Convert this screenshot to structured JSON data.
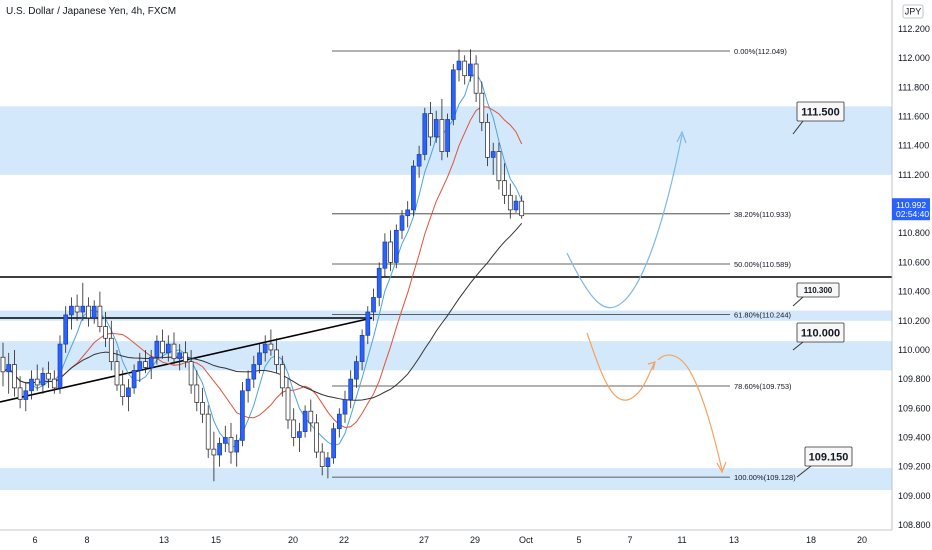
{
  "chart_data": {
    "type": "candlestick",
    "title": "U.S. Dollar / Japanese Yen, 4h, FXCM",
    "currency": "JPY",
    "ylim": [
      108.7,
      112.2
    ],
    "y_ticks": [
      "112.200",
      "112.000",
      "111.800",
      "111.600",
      "111.400",
      "111.200",
      "111.000",
      "110.800",
      "110.600",
      "110.400",
      "110.200",
      "110.000",
      "109.800",
      "109.600",
      "109.400",
      "109.200",
      "109.000",
      "108.800"
    ],
    "x_ticks": [
      "6",
      "8",
      "13",
      "15",
      "20",
      "22",
      "27",
      "29",
      "Oct",
      "5",
      "7",
      "11",
      "13",
      "18",
      "20"
    ],
    "last_price": "110.992",
    "countdown": "02:54:40",
    "zones": [
      {
        "from": 111.2,
        "to": 111.67
      },
      {
        "from": 110.2,
        "to": 110.27
      },
      {
        "from": 109.86,
        "to": 110.06
      },
      {
        "from": 109.04,
        "to": 109.19
      }
    ],
    "fib_levels": [
      {
        "label": "0.00%(112.049)",
        "price": 112.049
      },
      {
        "label": "38.20%(110.933)",
        "price": 110.933
      },
      {
        "label": "50.00%(110.589)",
        "price": 110.589
      },
      {
        "label": "61.80%(110.244)",
        "price": 110.244
      },
      {
        "label": "78.60%(109.753)",
        "price": 109.753
      },
      {
        "label": "100.00%(109.128)",
        "price": 109.128
      }
    ],
    "callouts": [
      {
        "label": "111.500",
        "price": 111.5
      },
      {
        "label": "110.300",
        "price": 110.3
      },
      {
        "label": "110.000",
        "price": 110.0
      },
      {
        "label": "109.150",
        "price": 109.15
      }
    ],
    "horizontal_line": 110.5,
    "candles": [
      {
        "o": 109.95,
        "h": 110.05,
        "l": 109.75,
        "c": 109.85
      },
      {
        "o": 109.85,
        "h": 109.98,
        "l": 109.7,
        "c": 109.9
      },
      {
        "o": 109.9,
        "h": 110.0,
        "l": 109.68,
        "c": 109.74
      },
      {
        "o": 109.74,
        "h": 109.82,
        "l": 109.6,
        "c": 109.66
      },
      {
        "o": 109.66,
        "h": 109.78,
        "l": 109.58,
        "c": 109.72
      },
      {
        "o": 109.72,
        "h": 109.86,
        "l": 109.66,
        "c": 109.8
      },
      {
        "o": 109.8,
        "h": 109.9,
        "l": 109.72,
        "c": 109.76
      },
      {
        "o": 109.76,
        "h": 109.88,
        "l": 109.7,
        "c": 109.84
      },
      {
        "o": 109.84,
        "h": 109.92,
        "l": 109.74,
        "c": 109.8
      },
      {
        "o": 109.8,
        "h": 109.86,
        "l": 109.7,
        "c": 109.74
      },
      {
        "o": 109.74,
        "h": 110.1,
        "l": 109.7,
        "c": 110.04
      },
      {
        "o": 110.04,
        "h": 110.3,
        "l": 109.98,
        "c": 110.24
      },
      {
        "o": 110.24,
        "h": 110.36,
        "l": 110.14,
        "c": 110.3
      },
      {
        "o": 110.3,
        "h": 110.38,
        "l": 110.2,
        "c": 110.26
      },
      {
        "o": 110.26,
        "h": 110.46,
        "l": 110.2,
        "c": 110.3
      },
      {
        "o": 110.3,
        "h": 110.36,
        "l": 110.16,
        "c": 110.22
      },
      {
        "o": 110.22,
        "h": 110.34,
        "l": 110.18,
        "c": 110.3
      },
      {
        "o": 110.3,
        "h": 110.4,
        "l": 110.12,
        "c": 110.16
      },
      {
        "o": 110.16,
        "h": 110.26,
        "l": 110.02,
        "c": 110.08
      },
      {
        "o": 110.08,
        "h": 110.2,
        "l": 109.86,
        "c": 109.92
      },
      {
        "o": 109.92,
        "h": 110.0,
        "l": 109.72,
        "c": 109.76
      },
      {
        "o": 109.76,
        "h": 109.86,
        "l": 109.62,
        "c": 109.68
      },
      {
        "o": 109.68,
        "h": 109.8,
        "l": 109.58,
        "c": 109.74
      },
      {
        "o": 109.74,
        "h": 109.9,
        "l": 109.7,
        "c": 109.86
      },
      {
        "o": 109.86,
        "h": 109.98,
        "l": 109.78,
        "c": 109.92
      },
      {
        "o": 109.92,
        "h": 110.0,
        "l": 109.84,
        "c": 109.88
      },
      {
        "o": 109.88,
        "h": 110.0,
        "l": 109.8,
        "c": 109.95
      },
      {
        "o": 109.95,
        "h": 110.1,
        "l": 109.9,
        "c": 110.06
      },
      {
        "o": 110.06,
        "h": 110.14,
        "l": 109.94,
        "c": 109.98
      },
      {
        "o": 109.98,
        "h": 110.1,
        "l": 109.92,
        "c": 110.04
      },
      {
        "o": 110.04,
        "h": 110.12,
        "l": 109.9,
        "c": 109.94
      },
      {
        "o": 109.94,
        "h": 110.04,
        "l": 109.86,
        "c": 109.98
      },
      {
        "o": 109.98,
        "h": 110.06,
        "l": 109.88,
        "c": 109.92
      },
      {
        "o": 109.92,
        "h": 110.0,
        "l": 109.7,
        "c": 109.76
      },
      {
        "o": 109.76,
        "h": 109.86,
        "l": 109.58,
        "c": 109.64
      },
      {
        "o": 109.64,
        "h": 109.74,
        "l": 109.5,
        "c": 109.56
      },
      {
        "o": 109.56,
        "h": 109.62,
        "l": 109.26,
        "c": 109.32
      },
      {
        "o": 109.32,
        "h": 109.44,
        "l": 109.1,
        "c": 109.28
      },
      {
        "o": 109.28,
        "h": 109.4,
        "l": 109.2,
        "c": 109.36
      },
      {
        "o": 109.36,
        "h": 109.48,
        "l": 109.3,
        "c": 109.4
      },
      {
        "o": 109.4,
        "h": 109.5,
        "l": 109.22,
        "c": 109.3
      },
      {
        "o": 109.3,
        "h": 109.42,
        "l": 109.2,
        "c": 109.38
      },
      {
        "o": 109.38,
        "h": 109.78,
        "l": 109.34,
        "c": 109.72
      },
      {
        "o": 109.72,
        "h": 109.86,
        "l": 109.64,
        "c": 109.8
      },
      {
        "o": 109.8,
        "h": 109.96,
        "l": 109.74,
        "c": 109.9
      },
      {
        "o": 109.9,
        "h": 110.04,
        "l": 109.84,
        "c": 109.98
      },
      {
        "o": 109.98,
        "h": 110.1,
        "l": 109.92,
        "c": 110.04
      },
      {
        "o": 110.04,
        "h": 110.14,
        "l": 109.96,
        "c": 110.0
      },
      {
        "o": 110.0,
        "h": 110.08,
        "l": 109.84,
        "c": 109.9
      },
      {
        "o": 109.9,
        "h": 109.96,
        "l": 109.68,
        "c": 109.74
      },
      {
        "o": 109.74,
        "h": 109.8,
        "l": 109.46,
        "c": 109.52
      },
      {
        "o": 109.52,
        "h": 109.6,
        "l": 109.34,
        "c": 109.4
      },
      {
        "o": 109.4,
        "h": 109.5,
        "l": 109.3,
        "c": 109.44
      },
      {
        "o": 109.44,
        "h": 109.62,
        "l": 109.4,
        "c": 109.58
      },
      {
        "o": 109.58,
        "h": 109.66,
        "l": 109.44,
        "c": 109.5
      },
      {
        "o": 109.5,
        "h": 109.56,
        "l": 109.26,
        "c": 109.3
      },
      {
        "o": 109.3,
        "h": 109.36,
        "l": 109.14,
        "c": 109.2
      },
      {
        "o": 109.2,
        "h": 109.3,
        "l": 109.12,
        "c": 109.26
      },
      {
        "o": 109.26,
        "h": 109.5,
        "l": 109.22,
        "c": 109.46
      },
      {
        "o": 109.46,
        "h": 109.6,
        "l": 109.4,
        "c": 109.56
      },
      {
        "o": 109.56,
        "h": 109.72,
        "l": 109.5,
        "c": 109.66
      },
      {
        "o": 109.66,
        "h": 109.86,
        "l": 109.6,
        "c": 109.8
      },
      {
        "o": 109.8,
        "h": 109.96,
        "l": 109.74,
        "c": 109.92
      },
      {
        "o": 109.92,
        "h": 110.14,
        "l": 109.86,
        "c": 110.1
      },
      {
        "o": 110.1,
        "h": 110.3,
        "l": 110.04,
        "c": 110.26
      },
      {
        "o": 110.26,
        "h": 110.42,
        "l": 110.2,
        "c": 110.36
      },
      {
        "o": 110.36,
        "h": 110.6,
        "l": 110.3,
        "c": 110.56
      },
      {
        "o": 110.56,
        "h": 110.8,
        "l": 110.5,
        "c": 110.74
      },
      {
        "o": 110.74,
        "h": 110.82,
        "l": 110.54,
        "c": 110.6
      },
      {
        "o": 110.6,
        "h": 110.86,
        "l": 110.56,
        "c": 110.82
      },
      {
        "o": 110.82,
        "h": 110.96,
        "l": 110.76,
        "c": 110.92
      },
      {
        "o": 110.92,
        "h": 111.02,
        "l": 110.84,
        "c": 110.96
      },
      {
        "o": 110.96,
        "h": 111.3,
        "l": 110.92,
        "c": 111.26
      },
      {
        "o": 111.26,
        "h": 111.4,
        "l": 111.18,
        "c": 111.34
      },
      {
        "o": 111.34,
        "h": 111.66,
        "l": 111.3,
        "c": 111.62
      },
      {
        "o": 111.62,
        "h": 111.7,
        "l": 111.4,
        "c": 111.46
      },
      {
        "o": 111.46,
        "h": 111.64,
        "l": 111.42,
        "c": 111.58
      },
      {
        "o": 111.58,
        "h": 111.72,
        "l": 111.3,
        "c": 111.36
      },
      {
        "o": 111.36,
        "h": 111.62,
        "l": 111.32,
        "c": 111.58
      },
      {
        "o": 111.58,
        "h": 111.96,
        "l": 111.54,
        "c": 111.92
      },
      {
        "o": 111.92,
        "h": 112.06,
        "l": 111.84,
        "c": 111.98
      },
      {
        "o": 111.98,
        "h": 112.02,
        "l": 111.82,
        "c": 111.88
      },
      {
        "o": 111.88,
        "h": 112.06,
        "l": 111.84,
        "c": 111.96
      },
      {
        "o": 111.96,
        "h": 112.02,
        "l": 111.7,
        "c": 111.76
      },
      {
        "o": 111.76,
        "h": 111.84,
        "l": 111.5,
        "c": 111.56
      },
      {
        "o": 111.56,
        "h": 111.62,
        "l": 111.26,
        "c": 111.32
      },
      {
        "o": 111.32,
        "h": 111.42,
        "l": 111.2,
        "c": 111.36
      },
      {
        "o": 111.36,
        "h": 111.42,
        "l": 111.1,
        "c": 111.16
      },
      {
        "o": 111.16,
        "h": 111.28,
        "l": 111.0,
        "c": 111.06
      },
      {
        "o": 111.06,
        "h": 111.14,
        "l": 110.9,
        "c": 110.96
      },
      {
        "o": 110.96,
        "h": 111.06,
        "l": 110.94,
        "c": 111.02
      },
      {
        "o": 111.02,
        "h": 111.06,
        "l": 110.9,
        "c": 110.92
      }
    ]
  }
}
